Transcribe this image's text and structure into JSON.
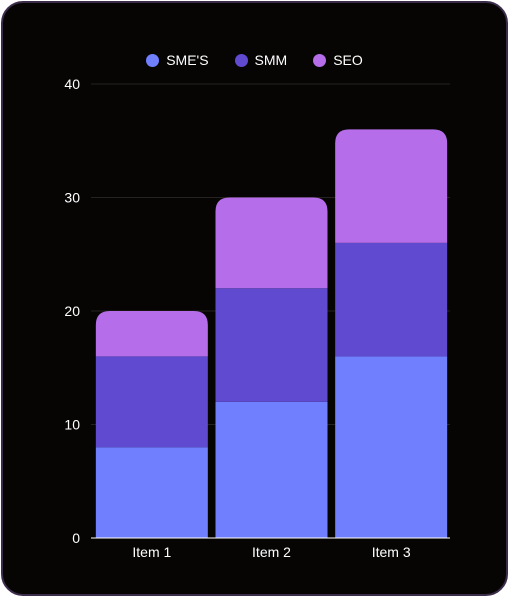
{
  "chart_data": {
    "type": "bar",
    "stacked": true,
    "categories": [
      "Item 1",
      "Item 2",
      "Item 3"
    ],
    "series": [
      {
        "name": "SME'S",
        "values": [
          8,
          12,
          16
        ],
        "color": "#6f7ffe"
      },
      {
        "name": "SMM",
        "values": [
          8,
          10,
          10
        ],
        "color": "#5f4ad0"
      },
      {
        "name": "SEO",
        "values": [
          4,
          8,
          10
        ],
        "color": "#b56de9"
      }
    ],
    "yticks": [
      "0",
      "10",
      "20",
      "30",
      "40"
    ],
    "ylim": [
      0,
      40
    ],
    "grid": true,
    "legend_position": "top-center",
    "background": "#060504"
  }
}
